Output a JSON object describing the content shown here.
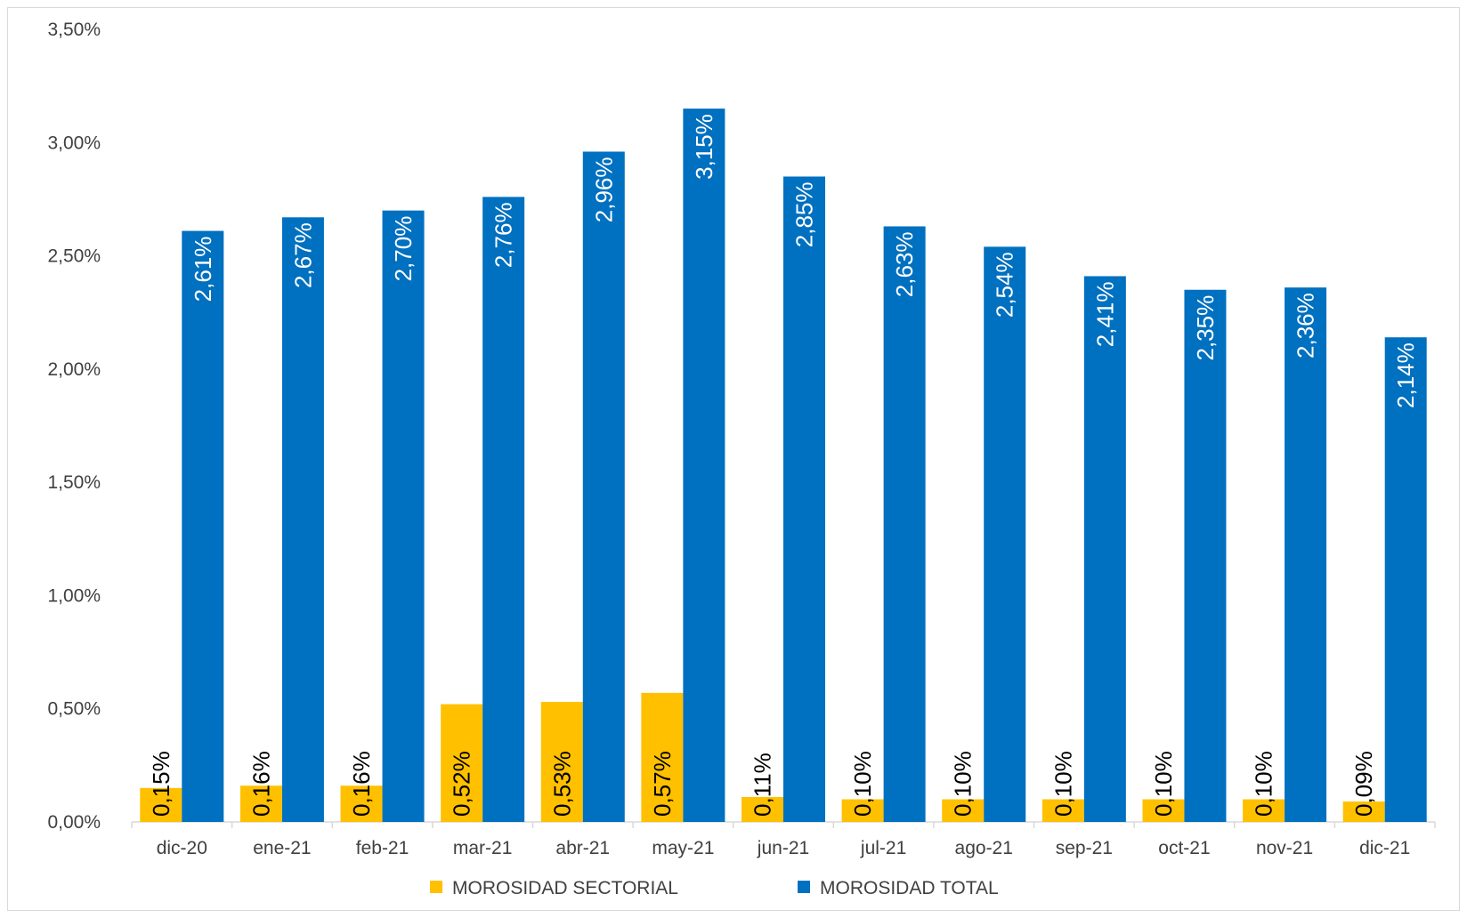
{
  "chart_data": {
    "type": "bar",
    "categories": [
      "dic-20",
      "ene-21",
      "feb-21",
      "mar-21",
      "abr-21",
      "may-21",
      "jun-21",
      "jul-21",
      "ago-21",
      "sep-21",
      "oct-21",
      "nov-21",
      "dic-21"
    ],
    "series": [
      {
        "name": "MOROSIDAD SECTORIAL",
        "color": "#ffc000",
        "values": [
          0.15,
          0.16,
          0.16,
          0.52,
          0.53,
          0.57,
          0.11,
          0.1,
          0.1,
          0.1,
          0.1,
          0.1,
          0.09
        ],
        "labels": [
          "0,15%",
          "0,16%",
          "0,16%",
          "0,52%",
          "0,53%",
          "0,57%",
          "0,11%",
          "0,10%",
          "0,10%",
          "0,10%",
          "0,10%",
          "0,10%",
          "0,09%"
        ]
      },
      {
        "name": "MOROSIDAD TOTAL",
        "color": "#0070c0",
        "values": [
          2.61,
          2.67,
          2.7,
          2.76,
          2.96,
          3.15,
          2.85,
          2.63,
          2.54,
          2.41,
          2.35,
          2.36,
          2.14
        ],
        "labels": [
          "2,61%",
          "2,67%",
          "2,70%",
          "2,76%",
          "2,96%",
          "3,15%",
          "2,85%",
          "2,63%",
          "2,54%",
          "2,41%",
          "2,35%",
          "2,36%",
          "2,14%"
        ]
      }
    ],
    "ylim": [
      0,
      3.5
    ],
    "yticks": [
      0,
      0.5,
      1.0,
      1.5,
      2.0,
      2.5,
      3.0,
      3.5
    ],
    "ytick_labels": [
      "0,00%",
      "0,50%",
      "1,00%",
      "1,50%",
      "2,00%",
      "2,50%",
      "3,00%",
      "3,50%"
    ],
    "title": "",
    "xlabel": "",
    "ylabel": "",
    "grid": false,
    "legend_position": "bottom"
  }
}
